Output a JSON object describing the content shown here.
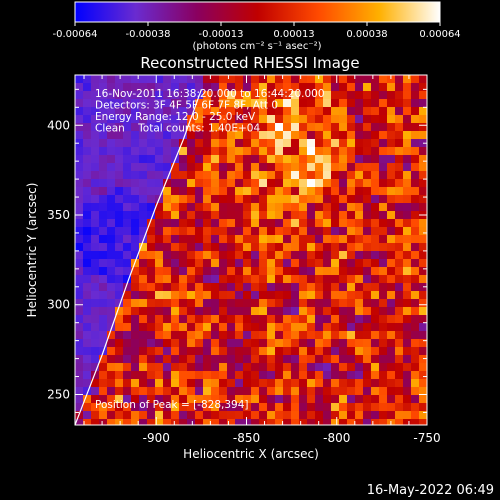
{
  "title": "Reconstructed RHESSI Image",
  "colorbar": {
    "ticks": [
      "-0.00064",
      "-0.00038",
      "-0.00013",
      "0.00013",
      "0.00038",
      "0.00064"
    ],
    "unit_label": "(photons cm⁻² s⁻¹ asec⁻²)",
    "range": [
      -0.00064,
      0.00064
    ],
    "colormap": [
      "#0000ff",
      "#6a2bd0",
      "#8a0060",
      "#c00000",
      "#ff4a00",
      "#ffb000",
      "#ffffff"
    ]
  },
  "info_lines": [
    "16-Nov-2011 16:38:20.000 to 16:44:20.000",
    "Detectors: 3F 4F 5F 6F 7F 8F, Att 0",
    "Energy Range: 12.0 - 25.0 keV",
    "Clean    Total counts: 1.40E+04"
  ],
  "peak_text": "Position of Peak = [-828,394]",
  "timestamp": "16-May-2022 06:49",
  "chart_data": {
    "type": "heatmap",
    "title": "Reconstructed RHESSI Image",
    "xlabel": "Heliocentric X (arcsec)",
    "ylabel": "Heliocentric Y (arcsec)",
    "xlim": [
      -945,
      -750
    ],
    "ylim": [
      233,
      428
    ],
    "xticks": [
      -900,
      -850,
      -800,
      -750
    ],
    "yticks": [
      250,
      300,
      350,
      400
    ],
    "xtick_labels": [
      "-900",
      "-850",
      "-800",
      "-750"
    ],
    "ytick_labels": [
      "250",
      "300",
      "350",
      "400"
    ],
    "peak": [
      -828,
      394
    ],
    "limb_curve": [
      [
        -945,
        233
      ],
      [
        -930,
        272
      ],
      [
        -915,
        315
      ],
      [
        -900,
        355
      ],
      [
        -885,
        392
      ],
      [
        -875,
        420
      ]
    ],
    "value_range": [
      -0.00064,
      0.00064
    ]
  }
}
